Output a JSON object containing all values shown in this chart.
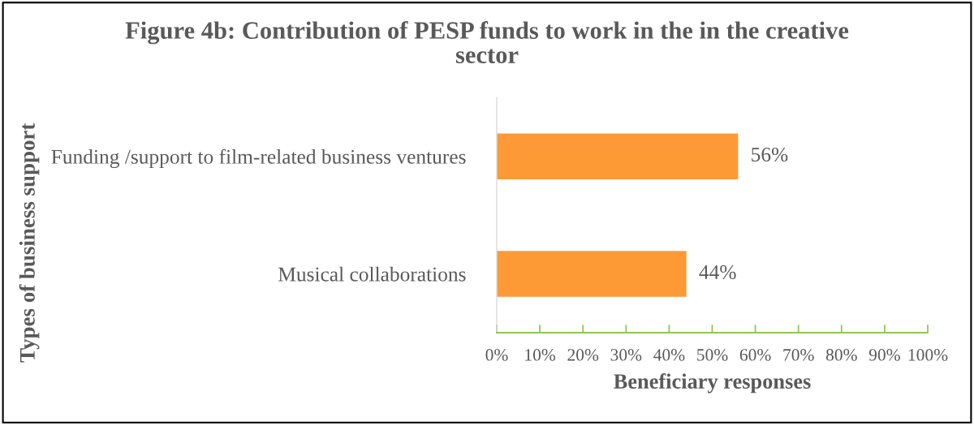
{
  "chart_data": {
    "type": "bar",
    "orientation": "horizontal",
    "title": "Figure 4b: Contribution of PESP funds to work in the in the creative\nsector",
    "xlabel": "Beneficiary responses",
    "ylabel": "Types of business support",
    "categories": [
      "Funding /support to film-related business ventures",
      "Musical collaborations"
    ],
    "values": [
      56,
      44
    ],
    "color": "#fd9a36",
    "value_labels": [
      "56%",
      "44%"
    ],
    "xlim": [
      0,
      100
    ],
    "xticks": [
      {
        "value": 0,
        "label": "0%"
      },
      {
        "value": 10,
        "label": "10%"
      },
      {
        "value": 20,
        "label": "20%"
      },
      {
        "value": 30,
        "label": "30%"
      },
      {
        "value": 40,
        "label": "40%"
      },
      {
        "value": 50,
        "label": "50%"
      },
      {
        "value": 60,
        "label": "60%"
      },
      {
        "value": 70,
        "label": "70%"
      },
      {
        "value": 80,
        "label": "80%"
      },
      {
        "value": 90,
        "label": "90%"
      },
      {
        "value": 100,
        "label": "100%"
      }
    ]
  }
}
